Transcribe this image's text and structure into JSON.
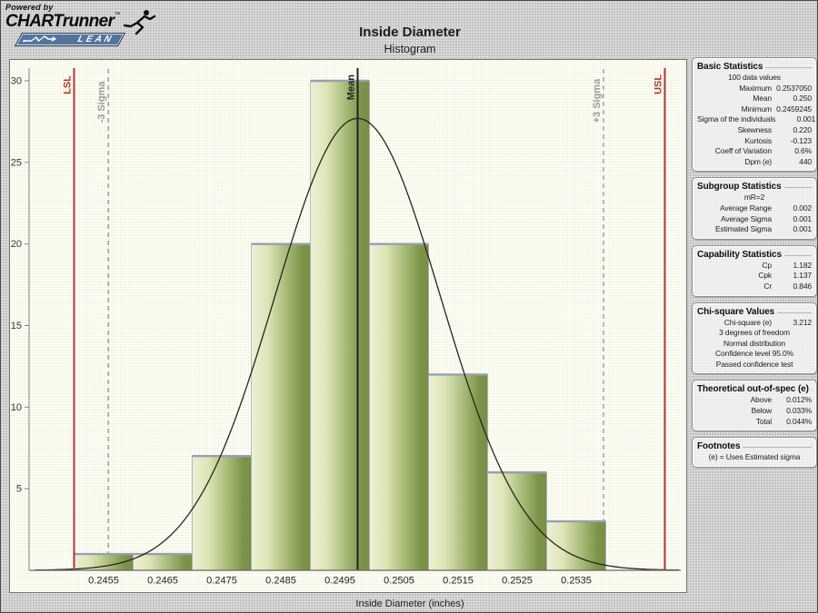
{
  "logo": {
    "powered_by": "Powered by",
    "brand": "CHARTrunner",
    "trademark": "™",
    "banner_text": "LEAN"
  },
  "header": {
    "title": "Inside Diameter",
    "subtitle": "Histogram"
  },
  "chart_data": {
    "type": "bar",
    "title": "Inside Diameter",
    "subtitle": "Histogram",
    "xlabel": "Inside Diameter (inches)",
    "ylabel": "",
    "categories": [
      "0.2455",
      "0.2465",
      "0.2475",
      "0.2485",
      "0.2495",
      "0.2505",
      "0.2515",
      "0.2525",
      "0.2535"
    ],
    "values": [
      1,
      1,
      7,
      20,
      30,
      20,
      12,
      6,
      3
    ],
    "bin_width": 0.001,
    "ylim": [
      0,
      31
    ],
    "yticks": [
      5,
      10,
      15,
      20,
      25,
      30
    ],
    "grid": false,
    "legend": "none",
    "normal_curve": {
      "mean": 0.2498,
      "sigma": 0.0014,
      "peak": 27.7
    },
    "reference_lines": [
      {
        "label": "LSL",
        "value": 0.245,
        "style": "spec"
      },
      {
        "label": "-3 Sigma",
        "value": 0.24558,
        "style": "sigma"
      },
      {
        "label": "Mean",
        "value": 0.2498,
        "style": "mean"
      },
      {
        "label": "+3 Sigma",
        "value": 0.25396,
        "style": "sigma"
      },
      {
        "label": "USL",
        "value": 0.255,
        "style": "spec"
      }
    ],
    "colors": {
      "bar_light": "#eef0d6",
      "bar_mid": "#a3b872",
      "bar_dark": "#7c944a",
      "bar_edge": "#a3abb6",
      "bar_cap": "#93a0b2",
      "curve": "#26261e",
      "spec_line": "#b5342c",
      "sigma_line": "#9b9b93",
      "mean_line": "#1c241c",
      "axis": "#85857a",
      "tick_text": "#333333"
    }
  },
  "panels": [
    {
      "title": "Basic Statistics",
      "rows": [
        {
          "center": "100 data values"
        },
        {
          "label": "Maximum",
          "value": "0.2537050"
        },
        {
          "label": "Mean",
          "value": "0.250"
        },
        {
          "label": "Minimum",
          "value": "0.2459245"
        },
        {
          "label": "Sigma of the individuals",
          "value": "0.001"
        },
        {
          "label": "Skewness",
          "value": "0.220"
        },
        {
          "label": "Kurtosis",
          "value": "-0.123"
        },
        {
          "label": "Coeff of Variation",
          "value": "0.6%"
        },
        {
          "label": "Dpm (e)",
          "value": "440"
        }
      ]
    },
    {
      "title": "Subgroup Statistics",
      "rows": [
        {
          "center": "mR=2"
        },
        {
          "label": "Average Range",
          "value": "0.002"
        },
        {
          "label": "Average Sigma",
          "value": "0.001"
        },
        {
          "label": "Estimated Sigma",
          "value": "0.001"
        }
      ]
    },
    {
      "title": "Capability Statistics",
      "rows": [
        {
          "label": "Cp",
          "value": "1.182"
        },
        {
          "label": "Cpk",
          "value": "1.137"
        },
        {
          "label": "Cr",
          "value": "0.846"
        }
      ]
    },
    {
      "title": "Chi-square Values",
      "rows": [
        {
          "label": "Chi-square (e)",
          "value": "3.212"
        },
        {
          "center": "3 degrees of freedom"
        },
        {
          "center": "Normal distribution"
        },
        {
          "center": "Confidence level  95.0%"
        },
        {
          "center": "Passed confidence test"
        }
      ]
    },
    {
      "title": "Theoretical out-of-spec (e)",
      "rows": [
        {
          "label": "Above",
          "value": "0.012%"
        },
        {
          "label": "Below",
          "value": "0.033%"
        },
        {
          "label": "Total",
          "value": "0.044%"
        }
      ]
    },
    {
      "title": "Footnotes",
      "rows": [
        {
          "center": "(e) = Uses Estimated sigma"
        }
      ]
    }
  ]
}
